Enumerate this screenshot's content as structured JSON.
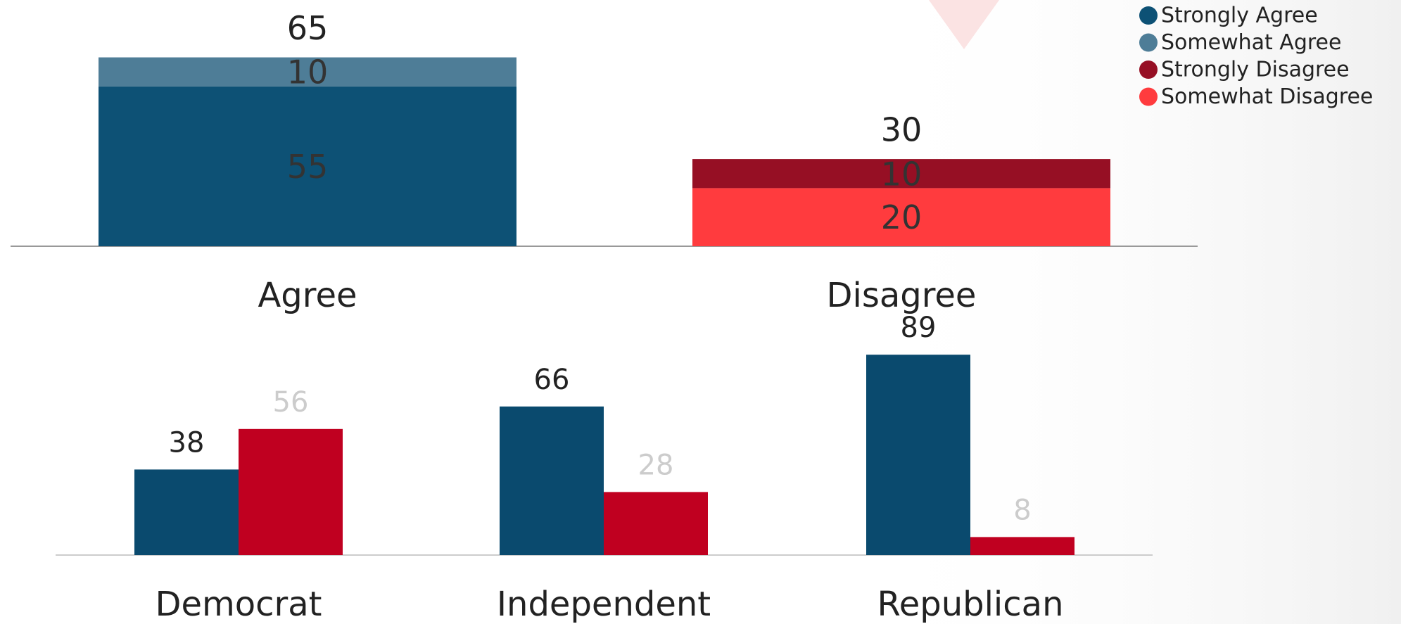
{
  "chart_data": [
    {
      "type": "stacked_bar",
      "categories": [
        "Agree",
        "Disagree"
      ],
      "series": [
        {
          "name": "Strongly Agree",
          "color": "#0d5175",
          "values": [
            55,
            null
          ]
        },
        {
          "name": "Somewhat Agree",
          "color": "#4e7d97",
          "values": [
            10,
            null
          ]
        },
        {
          "name": "Strongly Disagree",
          "color": "#960f24",
          "values": [
            null,
            10
          ]
        },
        {
          "name": "Somewhat Disagree",
          "color": "#ff3b3e",
          "values": [
            null,
            20
          ]
        }
      ],
      "totals": [
        65,
        30
      ],
      "legend": "top-right"
    },
    {
      "type": "grouped_bar",
      "categories": [
        "Democrat",
        "Independent",
        "Republican"
      ],
      "series": [
        {
          "color": "#0a4a6e",
          "label_color": "#222222",
          "values": [
            38,
            66,
            89
          ]
        },
        {
          "color": "#c00020",
          "label_color": "#cccccc",
          "values": [
            56,
            28,
            8
          ]
        }
      ]
    }
  ]
}
